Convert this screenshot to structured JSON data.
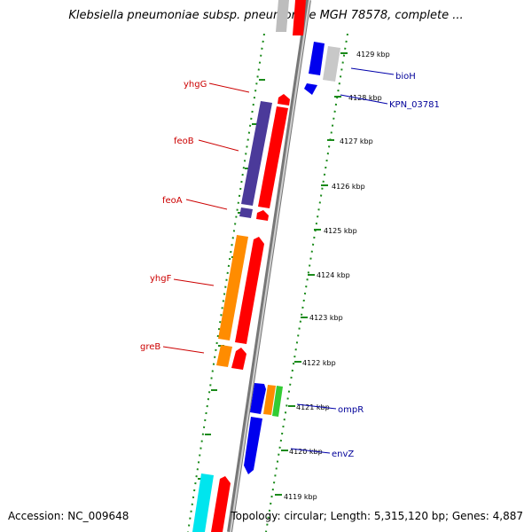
{
  "header": {
    "title": "Klebsiella pneumoniae subsp. pneumoniae MGH 78578, complete ..."
  },
  "footer": {
    "accession": "Accession: NC_009648",
    "topology": "Topology: circular; Length: 5,315,120 bp; Genes: 4,887"
  },
  "scale": {
    "ticks": [
      "4129 kbp",
      "4128 kbp",
      "4127 kbp",
      "4126 kbp",
      "4125 kbp",
      "4124 kbp",
      "4123 kbp",
      "4122 kbp",
      "4121 kbp",
      "4120 kbp",
      "4119 kbp"
    ]
  },
  "genes": {
    "left": [
      {
        "label": "yhgG",
        "color": "#cc0000"
      },
      {
        "label": "feoB",
        "color": "#cc0000"
      },
      {
        "label": "feoA",
        "color": "#cc0000"
      },
      {
        "label": "yhgF",
        "color": "#cc0000"
      },
      {
        "label": "greB",
        "color": "#cc0000"
      }
    ],
    "right": [
      {
        "label": "bioH",
        "color": "#000099"
      },
      {
        "label": "KPN_03781",
        "color": "#000099"
      },
      {
        "label": "ompR",
        "color": "#000099"
      },
      {
        "label": "envZ",
        "color": "#000099"
      }
    ]
  },
  "colors": {
    "cds_red": "#ff0000",
    "cds_blue": "#0000ee",
    "cds_purple": "#4b3a9a",
    "cds_orange": "#ff8c00",
    "cds_grey": "#bdbdbd",
    "cds_cyan": "#00e5ee",
    "cds_green": "#33cc33",
    "backbone": "#8a8a8a",
    "ticks": "#1a8a1a"
  }
}
